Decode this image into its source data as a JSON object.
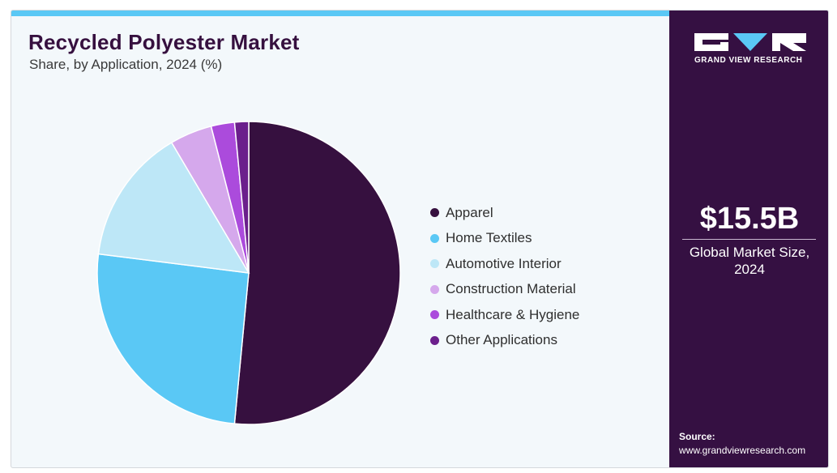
{
  "header": {
    "title": "Recycled Polyester Market",
    "subtitle": "Share, by Application, 2024 (%)"
  },
  "chart_data": {
    "type": "pie",
    "title": "Recycled Polyester Market",
    "subtitle": "Share, by Application, 2024 (%)",
    "start_angle_deg": 0,
    "direction": "clockwise",
    "legend_position": "right",
    "slices": [
      {
        "label": "Apparel",
        "value": 51.5,
        "color": "#36103f"
      },
      {
        "label": "Home Textiles",
        "value": 25.5,
        "color": "#5ac8f5"
      },
      {
        "label": "Automotive Interior",
        "value": 14.5,
        "color": "#bde7f7"
      },
      {
        "label": "Construction Material",
        "value": 4.5,
        "color": "#d5a8ec"
      },
      {
        "label": "Healthcare & Hygiene",
        "value": 2.5,
        "color": "#ab4bdc"
      },
      {
        "label": "Other Applications",
        "value": 1.5,
        "color": "#6b1f8c"
      }
    ]
  },
  "sidebar": {
    "brand": "GRAND VIEW RESEARCH",
    "market_value": "$15.5B",
    "market_label_line1": "Global Market Size,",
    "market_label_line2": "2024",
    "source_label": "Source:",
    "source_url": "www.grandviewresearch.com",
    "colors": {
      "background": "#351042",
      "accent": "#5ac8f5"
    }
  }
}
